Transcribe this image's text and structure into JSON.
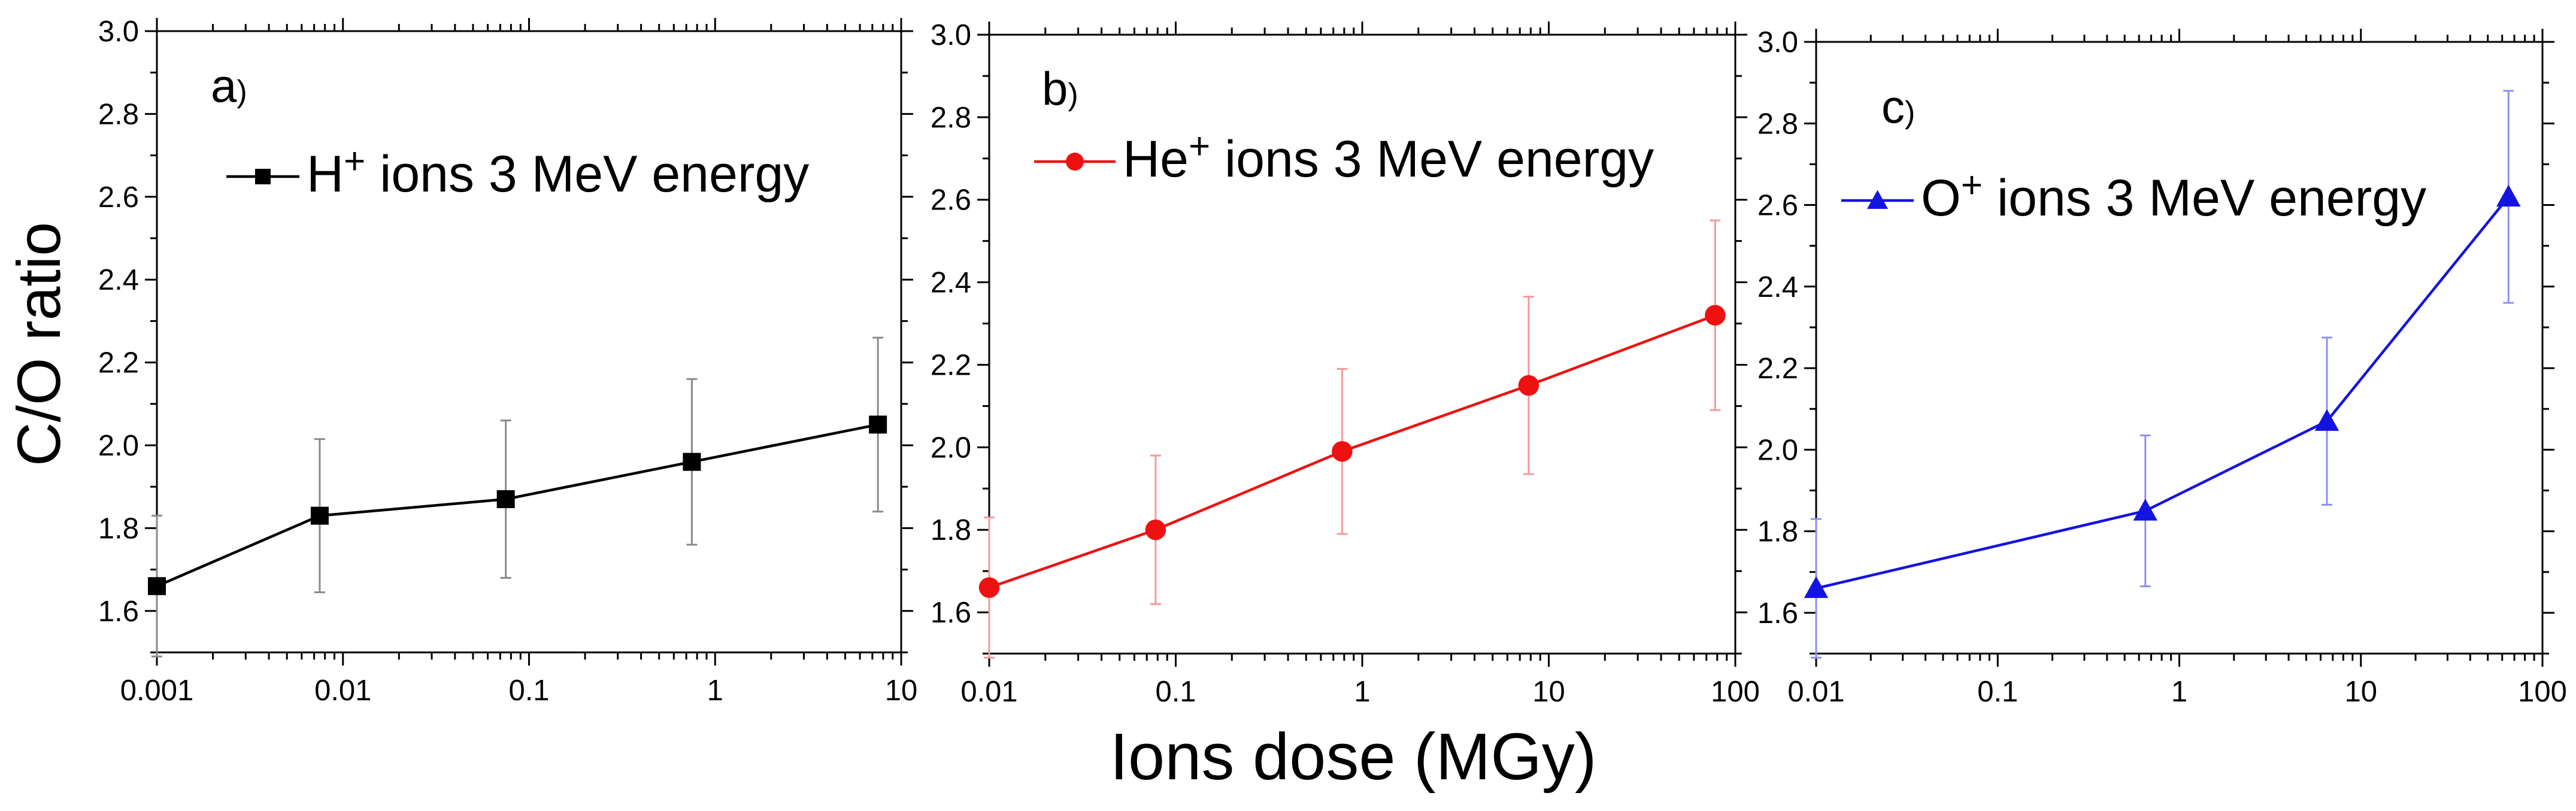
{
  "figure": {
    "ylabel": "C/O ratio",
    "xlabel": "Ions dose (MGy)"
  },
  "chart_data": [
    {
      "type": "line",
      "panel_label": "a",
      "panel_suffix": ")",
      "legend": {
        "ion": "H",
        "charge": "+",
        "text": " ions 3 MeV energy"
      },
      "color": "#000000",
      "error_color": "#8a8a8a",
      "marker": "square",
      "x_scale": "log",
      "xlim": [
        0.001,
        10
      ],
      "ylim": [
        1.5,
        3.0
      ],
      "xticks": [
        "0.001",
        "0.01",
        "0.1",
        "1",
        "10"
      ],
      "yticks": [
        "1.6",
        "1.8",
        "2.0",
        "2.2",
        "2.4",
        "2.6",
        "2.8",
        "3.0"
      ],
      "x": [
        0.001,
        0.0075,
        0.075,
        0.75,
        7.5
      ],
      "y": [
        1.66,
        1.83,
        1.87,
        1.96,
        2.05
      ],
      "yerr": [
        0.17,
        0.185,
        0.19,
        0.2,
        0.21
      ]
    },
    {
      "type": "line",
      "panel_label": "b",
      "panel_suffix": ")",
      "legend": {
        "ion": "He",
        "charge": "+",
        "text": " ions 3 MeV energy"
      },
      "color": "#ee1111",
      "error_color": "#f29a9a",
      "marker": "circle",
      "x_scale": "log",
      "xlim": [
        0.01,
        100
      ],
      "ylim": [
        1.5,
        3.0
      ],
      "xticks": [
        "0.01",
        "0.1",
        "1",
        "10",
        "100"
      ],
      "yticks": [
        "1.6",
        "1.8",
        "2.0",
        "2.2",
        "2.4",
        "2.6",
        "2.8",
        "3.0"
      ],
      "x": [
        0.01,
        0.078,
        0.78,
        7.8,
        78
      ],
      "y": [
        1.66,
        1.8,
        1.99,
        2.15,
        2.32
      ],
      "yerr": [
        0.17,
        0.18,
        0.2,
        0.215,
        0.23
      ]
    },
    {
      "type": "line",
      "panel_label": "c",
      "panel_suffix": ")",
      "legend": {
        "ion": "O",
        "charge": "+",
        "text": " ions 3 MeV energy"
      },
      "color": "#1414e0",
      "error_color": "#9090ee",
      "marker": "triangle",
      "x_scale": "log",
      "xlim": [
        0.01,
        100
      ],
      "ylim": [
        1.5,
        3.0
      ],
      "xticks": [
        "0.01",
        "0.1",
        "1",
        "10",
        "100"
      ],
      "yticks": [
        "1.6",
        "1.8",
        "2.0",
        "2.2",
        "2.4",
        "2.6",
        "2.8",
        "3.0"
      ],
      "x": [
        0.01,
        0.65,
        6.5,
        65
      ],
      "y": [
        1.66,
        1.85,
        2.07,
        2.62
      ],
      "yerr": [
        0.17,
        0.185,
        0.205,
        0.26
      ]
    }
  ]
}
